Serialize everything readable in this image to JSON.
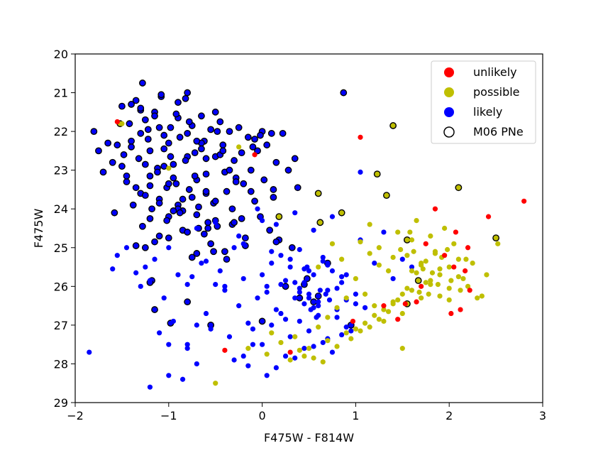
{
  "chart_data": {
    "type": "scatter",
    "xlabel": "F475W - F814W",
    "ylabel": "F475W",
    "xlim": [
      -2,
      3
    ],
    "ylim": [
      29,
      20
    ],
    "y_inverted": true,
    "xticks": [
      -2,
      -1,
      0,
      1,
      2,
      3
    ],
    "xtick_labels": [
      "−2",
      "−1",
      "0",
      "1",
      "2",
      "3"
    ],
    "yticks": [
      20,
      21,
      22,
      23,
      24,
      25,
      26,
      27,
      28,
      29
    ],
    "ytick_labels": [
      "20",
      "21",
      "22",
      "23",
      "24",
      "25",
      "26",
      "27",
      "28",
      "29"
    ],
    "grid": false,
    "legend_position": "top-right",
    "series": [
      {
        "name": "unlikely",
        "color": "#ff0000",
        "x": [
          -1.55,
          -0.08,
          1.05,
          2.42,
          2.8,
          1.85,
          2.07,
          2.2,
          1.95,
          2.05,
          2.17,
          2.22,
          2.12,
          1.7,
          1.65,
          1.3,
          1.45,
          0.97,
          0.3,
          -0.4,
          1.53,
          1.75,
          2.02
        ],
        "y": [
          21.75,
          22.6,
          22.15,
          24.2,
          23.8,
          24.0,
          24.6,
          25.0,
          25.2,
          25.5,
          25.6,
          26.1,
          26.6,
          26.0,
          26.4,
          26.5,
          26.85,
          26.9,
          27.7,
          27.65,
          26.45,
          24.9,
          26.7
        ]
      },
      {
        "name": "possible",
        "color": "#bfbf00",
        "x": [
          -1.5,
          -1.0,
          -0.25,
          0.6,
          0.75,
          0.85,
          1.0,
          1.15,
          1.25,
          1.35,
          1.45,
          1.55,
          1.6,
          1.65,
          1.7,
          1.75,
          1.8,
          1.85,
          1.9,
          1.95,
          2.0,
          2.05,
          2.1,
          2.15,
          2.2,
          2.3,
          2.4,
          2.52,
          1.1,
          1.2,
          1.3,
          1.4,
          1.5,
          1.6,
          1.7,
          1.8,
          1.9,
          2.0,
          0.5,
          0.7,
          0.9,
          1.0,
          1.1,
          1.2,
          1.3,
          1.4,
          1.5,
          1.6,
          1.7,
          1.8,
          1.9,
          2.0,
          2.1,
          0.3,
          0.45,
          0.65,
          0.8,
          0.95,
          1.05,
          1.15,
          1.25,
          1.35,
          1.45,
          1.55,
          1.65,
          1.75,
          1.85,
          0.1,
          0.2,
          0.4,
          0.6,
          0.7,
          0.8,
          0.9,
          -0.15,
          0.05,
          0.35,
          0.55,
          -0.5,
          1.5,
          1.4,
          1.25,
          1.15,
          1.05,
          2.25,
          2.35,
          1.72,
          1.82,
          1.92,
          2.02,
          1.62,
          1.68,
          1.78,
          1.88,
          1.98,
          2.12,
          1.58,
          2.18,
          1.48
        ],
        "y": [
          21.8,
          22.95,
          22.4,
          25.5,
          24.9,
          25.3,
          25.8,
          24.4,
          25.0,
          25.6,
          24.6,
          25.2,
          24.8,
          24.3,
          25.4,
          25.9,
          24.7,
          25.1,
          25.7,
          24.5,
          25.5,
          24.9,
          25.3,
          25.8,
          26.0,
          26.3,
          25.7,
          24.9,
          26.2,
          26.5,
          26.9,
          26.4,
          26.7,
          26.1,
          26.3,
          25.95,
          26.25,
          26.35,
          27.6,
          27.4,
          27.2,
          27.1,
          26.95,
          26.75,
          26.6,
          26.45,
          26.2,
          25.6,
          25.45,
          25.85,
          25.55,
          26.05,
          25.75,
          27.9,
          27.8,
          27.95,
          27.55,
          27.35,
          27.15,
          27.05,
          26.85,
          26.65,
          26.35,
          26.05,
          25.65,
          25.35,
          25.15,
          27.2,
          27.45,
          27.65,
          27.05,
          26.8,
          26.55,
          26.3,
          27.6,
          27.75,
          27.3,
          27.85,
          28.5,
          27.6,
          25.25,
          25.45,
          25.15,
          24.85,
          25.4,
          26.25,
          25.55,
          25.65,
          25.25,
          25.85,
          25.1,
          26.15,
          26.2,
          25.95,
          25.05,
          26.1,
          24.6,
          25.3,
          25.05
        ],
        "open_x": [
          -1.52,
          0.6,
          0.85,
          1.23,
          1.33,
          1.4,
          2.1,
          2.5,
          1.55,
          1.55,
          1.67,
          0.62,
          0.18
        ],
        "open_y": [
          21.8,
          23.6,
          24.1,
          23.1,
          23.65,
          21.85,
          23.45,
          24.75,
          24.8,
          26.45,
          25.85,
          24.35,
          24.2
        ]
      },
      {
        "name": "likely",
        "color": "#0000ff",
        "x": [
          -1.85,
          -1.6,
          -1.55,
          -1.45,
          -1.35,
          -1.25,
          -1.2,
          -1.15,
          -1.1,
          -1.05,
          -1.0,
          -0.95,
          -0.9,
          -0.85,
          -0.8,
          -0.75,
          -0.7,
          -0.65,
          -0.6,
          -0.55,
          -0.5,
          -0.45,
          -0.4,
          -0.35,
          -0.3,
          -0.25,
          -0.2,
          -0.15,
          -0.1,
          -0.05,
          0.0,
          0.05,
          0.1,
          0.15,
          0.2,
          0.25,
          0.3,
          0.35,
          0.4,
          0.45,
          0.5,
          0.55,
          0.6,
          0.65,
          0.7,
          0.75,
          0.8,
          0.85,
          0.9,
          0.95,
          1.0,
          1.05,
          1.1,
          1.2,
          1.3,
          1.4,
          -0.2,
          -0.1,
          0.0,
          0.1,
          0.2,
          0.3,
          0.4,
          0.5,
          0.6,
          0.7,
          0.8,
          0.9,
          1.0,
          -0.3,
          -0.15,
          0.05,
          0.25,
          0.45,
          0.65,
          0.85,
          0.15,
          0.35,
          0.55,
          0.75,
          0.95,
          0.05,
          0.25,
          0.45,
          0.65,
          0.85,
          -0.4,
          -0.6,
          -0.8,
          -1.0,
          -1.2,
          -1.3,
          -0.7,
          -0.5,
          -0.25,
          -0.05,
          0.15,
          0.35,
          0.55,
          0.75,
          0.1,
          0.3,
          0.5,
          0.7,
          0.9,
          0.2,
          0.4,
          0.6,
          0.8,
          0.0,
          -0.2,
          0.6,
          0.45,
          0.5,
          0.55,
          0.4,
          0.35,
          0.62,
          0.68,
          0.72,
          0.52,
          0.48,
          0.58,
          1.05,
          1.5,
          1.6,
          -1.0,
          -0.8,
          -0.7
        ],
        "y": [
          27.7,
          25.55,
          25.2,
          25.0,
          25.65,
          25.5,
          28.6,
          25.3,
          27.2,
          26.3,
          27.5,
          26.9,
          25.7,
          28.4,
          27.6,
          25.75,
          27.0,
          25.4,
          26.7,
          27.1,
          25.95,
          25.6,
          26.1,
          27.3,
          25.0,
          26.5,
          25.8,
          26.95,
          27.5,
          26.3,
          25.7,
          26.0,
          25.4,
          26.6,
          25.2,
          26.85,
          25.5,
          26.3,
          25.05,
          25.9,
          26.2,
          25.7,
          26.5,
          25.35,
          26.1,
          25.6,
          26.8,
          25.9,
          26.35,
          27.0,
          26.2,
          24.8,
          26.55,
          25.4,
          24.6,
          25.8,
          27.8,
          27.1,
          27.5,
          27.0,
          26.7,
          27.3,
          26.9,
          27.15,
          26.75,
          27.35,
          26.6,
          27.05,
          26.45,
          27.9,
          28.05,
          28.3,
          27.8,
          27.6,
          27.45,
          27.25,
          28.1,
          27.85,
          27.55,
          27.7,
          27.15,
          26.15,
          25.85,
          25.55,
          25.25,
          25.75,
          26.0,
          25.35,
          25.95,
          25.0,
          25.85,
          26.0,
          24.5,
          24.35,
          24.7,
          24.0,
          24.4,
          24.1,
          24.55,
          24.2,
          25.1,
          25.3,
          25.6,
          25.45,
          25.7,
          25.95,
          26.15,
          26.4,
          26.05,
          24.3,
          24.9,
          26.25,
          26.45,
          26.3,
          26.55,
          26.05,
          25.9,
          26.1,
          26.2,
          26.35,
          26.6,
          25.5,
          26.8,
          23.05,
          25.3,
          25.5,
          28.3,
          27.5,
          28.0
        ],
        "open_x": [
          -1.8,
          -1.75,
          -1.7,
          -1.65,
          -1.6,
          -1.58,
          -1.55,
          -1.5,
          -1.48,
          -1.45,
          -1.42,
          -1.4,
          -1.38,
          -1.35,
          -1.32,
          -1.3,
          -1.28,
          -1.25,
          -1.22,
          -1.2,
          -1.18,
          -1.15,
          -1.12,
          -1.1,
          -1.08,
          -1.05,
          -1.02,
          -1.0,
          -0.98,
          -0.95,
          -0.92,
          -0.9,
          -0.88,
          -0.85,
          -0.82,
          -0.8,
          -0.78,
          -0.75,
          -0.72,
          -0.7,
          -0.68,
          -0.65,
          -0.62,
          -0.6,
          -0.58,
          -0.55,
          -0.52,
          -0.5,
          -0.48,
          -0.45,
          -0.42,
          -0.4,
          -0.38,
          -0.35,
          -0.32,
          -0.3,
          -0.28,
          -0.25,
          -0.22,
          -0.2,
          -0.18,
          -0.15,
          -0.12,
          -0.1,
          -0.08,
          -0.05,
          -0.02,
          0.0,
          0.02,
          0.05,
          0.08,
          0.1,
          0.12,
          0.15,
          -1.5,
          -1.45,
          -1.4,
          -1.35,
          -1.3,
          -1.25,
          -1.2,
          -1.15,
          -1.1,
          -1.05,
          -1.0,
          -0.95,
          -0.9,
          -0.85,
          -0.8,
          -0.75,
          -0.7,
          -0.65,
          -0.6,
          -0.55,
          -0.5,
          -0.45,
          -0.4,
          -0.35,
          -0.3,
          -1.4,
          -1.3,
          -1.2,
          -1.1,
          -1.0,
          -0.9,
          -0.8,
          -0.7,
          -0.6,
          -0.5,
          -1.3,
          -1.2,
          -1.1,
          -1.0,
          -0.9,
          -0.8,
          -0.7,
          -0.6,
          -1.25,
          -1.15,
          -1.05,
          -0.95,
          -0.85,
          -0.75,
          -0.65,
          -1.35,
          -1.22,
          -1.12,
          -1.02,
          -0.92,
          -0.82,
          -0.72,
          -0.62,
          -0.52,
          -1.28,
          -1.18,
          -1.08,
          -0.98,
          -0.88,
          -0.78,
          -0.68,
          -0.58,
          -0.48,
          -0.38,
          -0.28,
          -0.18,
          -0.08,
          0.12,
          0.22,
          0.32,
          -0.42,
          -0.32,
          -0.22,
          -0.12,
          -0.02,
          0.18,
          0.28,
          0.38,
          0.7,
          0.87,
          0.35,
          0.45,
          0.55,
          0.48,
          0.25,
          0.6,
          0.15,
          0.4,
          0.95,
          0.0,
          -0.55,
          -0.98,
          -1.25,
          -1.2,
          -0.5,
          -1.15,
          -0.8
        ],
        "open_y": [
          22.0,
          22.5,
          23.05,
          22.3,
          22.8,
          24.1,
          22.35,
          21.35,
          22.6,
          23.3,
          21.8,
          22.4,
          23.9,
          21.2,
          22.7,
          23.6,
          20.75,
          21.7,
          22.2,
          23.15,
          24.0,
          21.5,
          22.95,
          23.75,
          21.1,
          22.45,
          23.45,
          24.2,
          21.9,
          22.85,
          23.35,
          21.65,
          22.15,
          24.55,
          21.15,
          22.05,
          23.5,
          21.85,
          22.55,
          23.25,
          24.5,
          21.6,
          22.25,
          23.1,
          24.35,
          21.95,
          23.85,
          22.65,
          24.45,
          21.75,
          22.35,
          23.05,
          23.55,
          22.0,
          24.4,
          22.75,
          23.2,
          21.9,
          22.55,
          23.35,
          24.75,
          22.15,
          23.0,
          22.4,
          23.8,
          22.5,
          24.2,
          22.0,
          23.25,
          22.35,
          24.55,
          22.05,
          23.5,
          22.8,
          22.9,
          23.15,
          22.25,
          23.45,
          21.45,
          22.85,
          24.25,
          21.6,
          23.85,
          22.1,
          24.75,
          23.2,
          21.25,
          24.05,
          22.65,
          23.7,
          24.15,
          22.3,
          23.6,
          24.9,
          24.3,
          22.6,
          25.1,
          23.0,
          24.35,
          21.3,
          22.05,
          23.4,
          24.7,
          22.3,
          23.9,
          24.6,
          25.15,
          22.7,
          23.8,
          21.4,
          22.5,
          21.9,
          23.35,
          24.0,
          21.0,
          22.25,
          23.55,
          23.65,
          24.85,
          22.9,
          24.05,
          23.75,
          25.25,
          22.45,
          24.95,
          21.95,
          23.05,
          24.3,
          21.55,
          22.75,
          23.15,
          24.65,
          25.1,
          24.45,
          25.85,
          21.05,
          22.65,
          24.1,
          21.75,
          23.95,
          24.5,
          22.0,
          25.3,
          23.3,
          24.95,
          22.2,
          23.7,
          22.05,
          25.0,
          22.5,
          24.0,
          24.25,
          23.55,
          22.1,
          24.8,
          23.0,
          23.45,
          25.4,
          21.0,
          22.7,
          25.95,
          26.4,
          25.8,
          26.0,
          26.25,
          24.85,
          26.3,
          27.0,
          26.9,
          27.0,
          26.95,
          25.0,
          25.9,
          21.5,
          26.6,
          26.4,
          25.2
        ],
        "open_pos": "edges"
      },
      {
        "name": "M06 PNe",
        "marker": "open-circle",
        "color": "#000000",
        "x": [],
        "y": []
      }
    ]
  }
}
